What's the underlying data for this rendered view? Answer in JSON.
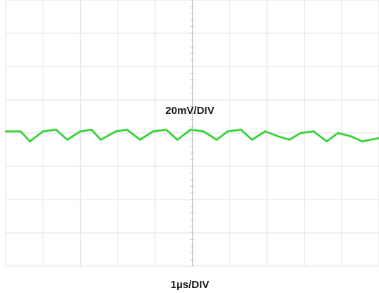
{
  "chart_data": {
    "type": "line",
    "title": "",
    "xlabel": "1µs/DIV",
    "ylabel": "20mV/DIV",
    "x_unit": "µs",
    "y_unit": "mV",
    "grid": true,
    "grid_divisions": {
      "x": 10,
      "y": 8
    },
    "xlim": [
      0,
      10
    ],
    "ylim": [
      -80,
      80
    ],
    "series": [
      {
        "color": "#22cc22",
        "x": [
          0.0,
          0.4,
          0.65,
          1.0,
          1.35,
          1.65,
          2.0,
          2.3,
          2.55,
          2.95,
          3.25,
          3.6,
          3.95,
          4.3,
          4.6,
          4.95,
          5.3,
          5.65,
          5.95,
          6.3,
          6.6,
          6.95,
          7.3,
          7.6,
          7.9,
          8.25,
          8.6,
          8.9,
          9.25,
          9.55,
          10.0
        ],
        "y": [
          1,
          1,
          -5,
          1,
          2,
          -4,
          1,
          2,
          -4,
          1,
          2,
          -4,
          1,
          2,
          -4,
          2,
          1,
          -4,
          1,
          2,
          -4,
          1,
          -2,
          -4,
          0,
          1,
          -5,
          0,
          -2,
          -5,
          -3
        ]
      }
    ]
  }
}
